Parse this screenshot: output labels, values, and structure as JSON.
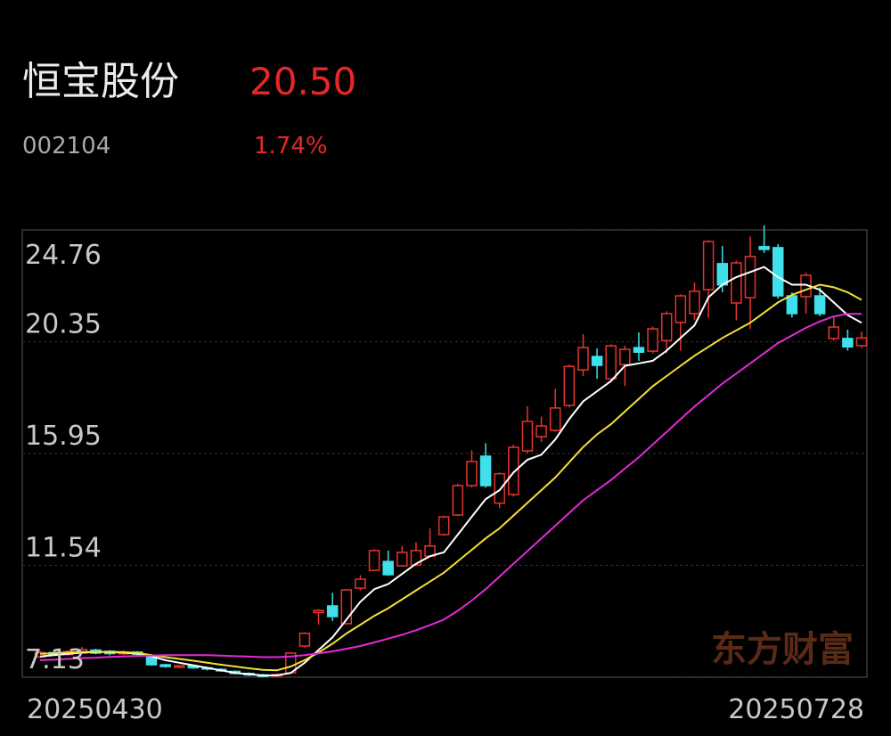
{
  "header": {
    "name": "恒宝股份",
    "price": "20.50",
    "code": "002104",
    "change": "1.74%"
  },
  "watermark": "东方财富",
  "chart_data": {
    "type": "candlestick",
    "categories": [
      "20250430",
      null,
      null,
      null,
      null,
      null,
      null,
      null,
      null,
      null,
      null,
      null,
      null,
      null,
      null,
      null,
      null,
      null,
      null,
      null,
      null,
      null,
      null,
      null,
      null,
      null,
      null,
      null,
      null,
      null,
      null,
      null,
      null,
      null,
      null,
      null,
      null,
      null,
      null,
      null,
      null,
      null,
      null,
      null,
      null,
      null,
      null,
      null,
      null,
      null,
      null,
      null,
      null,
      null,
      null,
      null,
      null,
      null,
      null,
      "20250728"
    ],
    "open": [
      7.93,
      8.1,
      8.02,
      8.08,
      8.2,
      8.15,
      8.05,
      8.12,
      7.98,
      7.62,
      7.52,
      7.58,
      7.5,
      7.44,
      7.36,
      7.28,
      7.22,
      7.18,
      7.3,
      8.36,
      9.68,
      9.94,
      9.24,
      10.64,
      11.34,
      11.69,
      11.52,
      11.55,
      11.9,
      12.75,
      13.52,
      14.68,
      15.84,
      13.99,
      14.33,
      16.05,
      16.61,
      16.86,
      17.84,
      19.24,
      19.77,
      18.89,
      19.45,
      20.12,
      19.98,
      20.4,
      21.11,
      21.46,
      22.4,
      23.43,
      21.88,
      22.09,
      24.1,
      24.06,
      22.16,
      22.13,
      22.16,
      20.48,
      20.48,
      20.2
    ],
    "high": [
      8.17,
      8.16,
      8.2,
      8.32,
      8.25,
      8.2,
      8.18,
      8.16,
      8.02,
      7.66,
      7.62,
      7.6,
      7.54,
      7.48,
      7.4,
      7.32,
      7.26,
      7.28,
      8.12,
      8.9,
      9.8,
      10.46,
      10.6,
      11.15,
      12.18,
      12.12,
      12.3,
      12.45,
      13.0,
      13.5,
      14.75,
      16.07,
      16.35,
      15.2,
      16.3,
      17.81,
      17.4,
      18.5,
      19.45,
      20.65,
      20.09,
      20.25,
      20.2,
      20.72,
      20.95,
      21.55,
      22.22,
      22.69,
      24.35,
      24.13,
      23.55,
      24.5,
      24.94,
      24.2,
      22.3,
      23.08,
      22.5,
      21.35,
      20.83,
      20.75
    ],
    "low": [
      7.88,
      7.98,
      7.98,
      8.03,
      8.03,
      8.0,
      8.0,
      7.98,
      7.58,
      7.5,
      7.48,
      7.46,
      7.4,
      7.34,
      7.24,
      7.18,
      7.13,
      7.15,
      7.26,
      8.3,
      9.2,
      9.34,
      9.2,
      10.55,
      11.3,
      11.12,
      11.48,
      11.5,
      11.85,
      12.7,
      13.48,
      14.6,
      14.6,
      13.8,
      14.25,
      15.95,
      16.4,
      16.8,
      17.76,
      19.0,
      18.89,
      18.8,
      18.6,
      19.6,
      19.9,
      19.9,
      20.0,
      21.2,
      21.3,
      22.3,
      21.2,
      20.86,
      23.85,
      22.05,
      21.3,
      21.46,
      21.35,
      20.4,
      20.0,
      20.1
    ],
    "close": [
      8.1,
      8.02,
      8.14,
      8.22,
      8.08,
      8.06,
      8.12,
      8.04,
      7.62,
      7.55,
      7.58,
      7.5,
      7.45,
      7.38,
      7.28,
      7.22,
      7.16,
      7.24,
      8.08,
      8.86,
      9.76,
      9.52,
      10.57,
      10.99,
      12.12,
      11.17,
      12.05,
      12.12,
      12.3,
      13.45,
      14.68,
      15.63,
      14.68,
      15.15,
      16.19,
      17.21,
      17.03,
      17.74,
      19.38,
      20.12,
      19.42,
      20.19,
      20.05,
      19.94,
      20.86,
      21.46,
      22.16,
      22.34,
      24.3,
      22.59,
      23.46,
      23.71,
      23.99,
      22.16,
      21.46,
      22.97,
      21.46,
      20.93,
      20.15,
      20.5
    ],
    "up_color": "#e8332e",
    "down_color": "#3fe0ec",
    "lines": [
      {
        "color": "#ffffff",
        "values": [
          7.95,
          8.0,
          8.05,
          8.1,
          8.12,
          8.12,
          8.1,
          8.05,
          7.95,
          7.8,
          7.7,
          7.6,
          7.5,
          7.4,
          7.3,
          7.25,
          7.2,
          7.2,
          7.3,
          7.7,
          8.2,
          8.7,
          9.4,
          10.1,
          10.6,
          10.8,
          11.2,
          11.6,
          11.9,
          12.05,
          12.75,
          13.45,
          14.15,
          14.5,
          15.2,
          15.7,
          15.9,
          16.5,
          17.3,
          18.0,
          18.4,
          18.8,
          19.4,
          19.5,
          19.6,
          20.0,
          20.5,
          21.0,
          22.1,
          22.6,
          22.9,
          23.1,
          23.3,
          22.9,
          22.6,
          22.6,
          22.4,
          21.9,
          21.4,
          21.1
        ]
      },
      {
        "color": "#f2e035",
        "values": [
          8.05,
          8.07,
          8.1,
          8.12,
          8.13,
          8.13,
          8.12,
          8.08,
          8.0,
          7.92,
          7.85,
          7.78,
          7.7,
          7.62,
          7.55,
          7.48,
          7.42,
          7.4,
          7.55,
          7.8,
          8.1,
          8.45,
          8.85,
          9.2,
          9.55,
          9.85,
          10.2,
          10.55,
          10.9,
          11.25,
          11.7,
          12.15,
          12.6,
          13.0,
          13.5,
          14.0,
          14.5,
          15.0,
          15.6,
          16.2,
          16.7,
          17.1,
          17.6,
          18.1,
          18.6,
          19.0,
          19.4,
          19.8,
          20.15,
          20.5,
          20.8,
          21.1,
          21.5,
          21.9,
          22.2,
          22.4,
          22.6,
          22.5,
          22.3,
          22.0
        ]
      },
      {
        "color": "#e22ad6",
        "values": [
          7.8,
          7.82,
          7.85,
          7.88,
          7.9,
          7.93,
          7.95,
          7.97,
          7.98,
          8.0,
          8.0,
          8.0,
          8.0,
          7.98,
          7.96,
          7.94,
          7.92,
          7.92,
          7.95,
          8.0,
          8.07,
          8.15,
          8.25,
          8.36,
          8.5,
          8.65,
          8.8,
          8.98,
          9.18,
          9.4,
          9.75,
          10.15,
          10.6,
          11.1,
          11.6,
          12.1,
          12.6,
          13.1,
          13.6,
          14.1,
          14.5,
          14.9,
          15.35,
          15.8,
          16.3,
          16.8,
          17.3,
          17.8,
          18.25,
          18.7,
          19.1,
          19.5,
          19.9,
          20.3,
          20.6,
          20.9,
          21.15,
          21.35,
          21.45,
          21.45
        ]
      }
    ],
    "ylim": [
      7.13,
      24.76
    ],
    "yticks": [
      24.76,
      20.35,
      15.95,
      11.54,
      7.13
    ],
    "grid": true
  }
}
